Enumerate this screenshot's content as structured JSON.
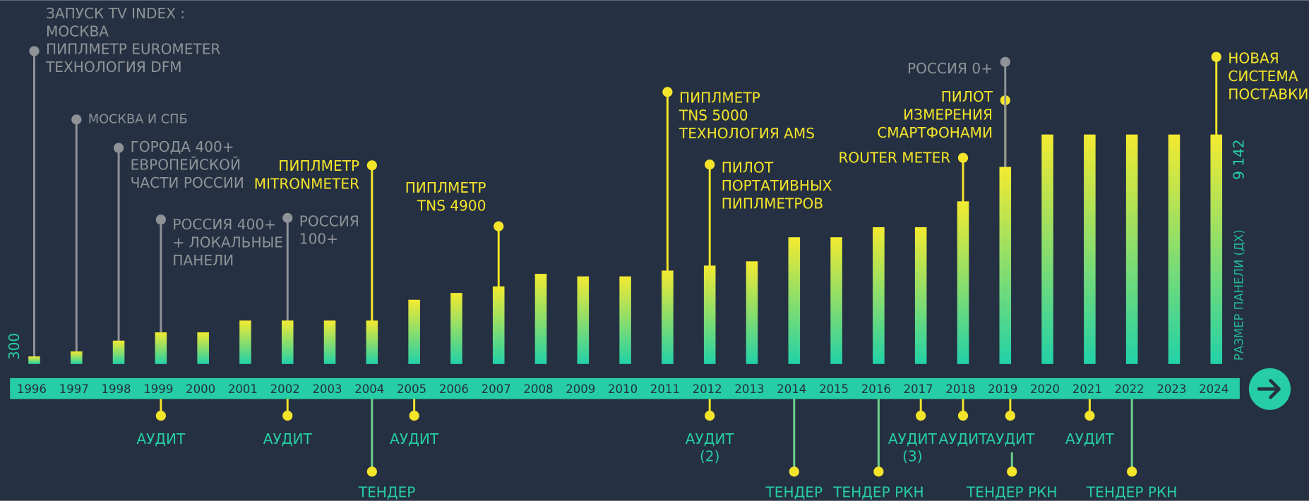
{
  "chart_data": {
    "type": "bar",
    "categories": [
      "1996",
      "1997",
      "1998",
      "1999",
      "2000",
      "2001",
      "2002",
      "2003",
      "2004",
      "2005",
      "2006",
      "2007",
      "2008",
      "2009",
      "2010",
      "2011",
      "2012",
      "2013",
      "2014",
      "2015",
      "2016",
      "2017",
      "2018",
      "2019",
      "2020",
      "2021",
      "2022",
      "2023",
      "2024"
    ],
    "values": [
      300,
      500,
      930,
      1260,
      1260,
      1730,
      1730,
      1730,
      1730,
      2560,
      2830,
      3090,
      3590,
      3490,
      3490,
      3720,
      3920,
      4090,
      5050,
      5050,
      5450,
      5450,
      6480,
      7850,
      9142,
      9142,
      9142,
      9142,
      9142
    ],
    "ylim": [
      0,
      9142
    ],
    "yticks": [
      300,
      {
        "value": 9142,
        "label": "9 142"
      }
    ],
    "ylabel": "РАЗМЕР ПАНЕЛИ (ДХ)",
    "colors": {
      "bar_bottom": "#22d1a8",
      "bar_top": "#f3ea30",
      "event": "#f5e52a",
      "milestone": "#8f9398",
      "below": "#26cda6",
      "background": "#253142"
    },
    "annotations": [
      {
        "category": "1996",
        "kind": "milestone",
        "lines": [
          "ЗАПУСК TV INDEX :",
          "МОСКВА",
          "ПИПЛМЕТР EUROMETER",
          "ТЕХНОЛОГИЯ DFM"
        ]
      },
      {
        "category": "1997",
        "kind": "milestone",
        "lines": [
          "МОСКВА И СПБ"
        ]
      },
      {
        "category": "1998",
        "kind": "milestone",
        "lines": [
          "ГОРОДА 400+",
          "ЕВРОПЕЙСКОЙ",
          "ЧАСТИ РОССИИ"
        ]
      },
      {
        "category": "1999",
        "kind": "milestone",
        "lines": [
          "РОССИЯ 400+",
          "+ ЛОКАЛЬНЫЕ",
          "ПАНЕЛИ"
        ]
      },
      {
        "category": "2002",
        "kind": "milestone",
        "lines": [
          "РОССИЯ",
          "100+"
        ]
      },
      {
        "category": "2004",
        "kind": "event",
        "lines": [
          "ПИПЛМЕТР",
          "MITRONMETER"
        ]
      },
      {
        "category": "2007",
        "kind": "event",
        "lines": [
          "ПИПЛМЕТР",
          "TNS 4900"
        ]
      },
      {
        "category": "2011",
        "kind": "event",
        "lines": [
          "ПИПЛМЕТР",
          "TNS 5000",
          "ТЕХНОЛОГИЯ AMS"
        ]
      },
      {
        "category": "2012",
        "kind": "event",
        "lines": [
          "ПИЛОТ",
          "ПОРТАТИВНЫХ",
          "ПИПЛМЕТРОВ"
        ]
      },
      {
        "category": "2018",
        "kind": "event",
        "lines": [
          "ROUTER METER"
        ]
      },
      {
        "category": "2019",
        "kind": "event",
        "lines": [
          "ПИЛОТ",
          "ИЗМЕРЕНИЯ",
          "СМАРТФОНАМИ"
        ]
      },
      {
        "category": "2019",
        "kind": "milestone",
        "lines": [
          "РОССИЯ 0+"
        ]
      },
      {
        "category": "2024",
        "kind": "event",
        "lines": [
          "НОВАЯ",
          "СИСТЕМА",
          "ПОСТАВКИ"
        ]
      }
    ],
    "below_annotations": [
      {
        "category": "1999",
        "lines": [
          "АУДИТ"
        ]
      },
      {
        "category": "2002",
        "lines": [
          "АУДИТ"
        ]
      },
      {
        "category": "2004",
        "lines": [
          "ТЕНДЕР"
        ]
      },
      {
        "category": "2005",
        "lines": [
          "АУДИТ"
        ]
      },
      {
        "category": "2012",
        "lines": [
          "АУДИТ",
          "(2)"
        ]
      },
      {
        "category": "2014",
        "lines": [
          "ТЕНДЕР"
        ]
      },
      {
        "category": "2016",
        "lines": [
          "ТЕНДЕР РКН"
        ]
      },
      {
        "category": "2017",
        "lines": [
          "АУДИТ",
          "(3)"
        ]
      },
      {
        "category": "2018",
        "lines": [
          "АУДИТ"
        ]
      },
      {
        "category": "2019",
        "lines": [
          "АУДИТ"
        ]
      },
      {
        "category": "2019",
        "lines": [
          "ТЕНДЕР РКН"
        ]
      },
      {
        "category": "2021",
        "lines": [
          "АУДИТ"
        ]
      },
      {
        "category": "2022",
        "lines": [
          "ТЕНДЕР РКН"
        ]
      }
    ]
  }
}
